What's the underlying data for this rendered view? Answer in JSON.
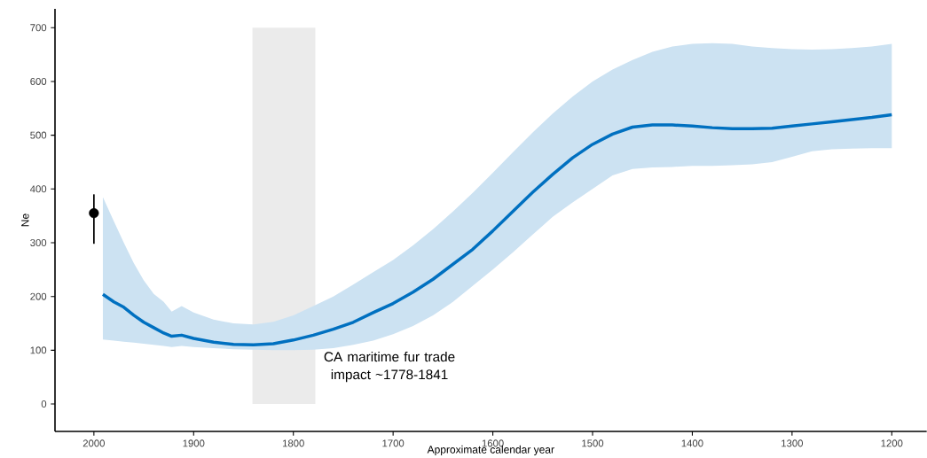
{
  "chart_data": {
    "type": "line",
    "xlabel": "Approximate calendar year",
    "ylabel": "Ne",
    "xlim": [
      2039,
      1165
    ],
    "xticks": [
      2000,
      1900,
      1800,
      1700,
      1600,
      1500,
      1400,
      1300,
      1200
    ],
    "ylim": [
      -51,
      735
    ],
    "yticks": [
      0,
      100,
      200,
      300,
      400,
      500,
      600,
      700
    ],
    "grid": false,
    "bands": [
      {
        "axis": "x",
        "from": 1841,
        "to": 1778,
        "color": "#ebebeb"
      }
    ],
    "annotations": [
      {
        "text": "CA maritime fur trade impact ~1778-1841",
        "x": 1778,
        "y": 100
      }
    ],
    "series": [
      {
        "color": "#0070c0",
        "x": [
          1991,
          1980,
          1970,
          1960,
          1950,
          1940,
          1930,
          1922,
          1912,
          1900,
          1880,
          1860,
          1840,
          1820,
          1800,
          1780,
          1760,
          1740,
          1720,
          1700,
          1680,
          1660,
          1640,
          1620,
          1600,
          1580,
          1560,
          1540,
          1520,
          1500,
          1480,
          1460,
          1440,
          1420,
          1400,
          1380,
          1360,
          1340,
          1320,
          1300,
          1280,
          1260,
          1240,
          1220,
          1200
        ],
        "values": [
          204,
          190,
          180,
          165,
          152,
          142,
          132,
          126,
          128,
          122,
          115,
          111,
          110,
          112,
          119,
          128,
          139,
          152,
          170,
          187,
          208,
          232,
          260,
          288,
          322,
          358,
          394,
          427,
          458,
          483,
          502,
          515,
          519,
          519,
          517,
          514,
          512,
          512,
          513,
          517,
          521,
          525,
          529,
          533,
          538
        ],
        "upper": [
          385,
          340,
          300,
          262,
          230,
          205,
          190,
          172,
          182,
          170,
          157,
          150,
          148,
          153,
          165,
          182,
          200,
          222,
          245,
          268,
          295,
          325,
          358,
          393,
          430,
          468,
          505,
          540,
          572,
          600,
          622,
          640,
          655,
          665,
          670,
          671,
          670,
          665,
          662,
          660,
          659,
          660,
          662,
          665,
          670
        ],
        "lower": [
          120,
          118,
          116,
          114,
          112,
          110,
          108,
          106,
          108,
          106,
          104,
          102,
          101,
          100,
          100,
          101,
          104,
          110,
          118,
          130,
          145,
          165,
          190,
          220,
          250,
          282,
          315,
          348,
          375,
          400,
          425,
          437,
          440,
          441,
          443,
          443,
          444,
          446,
          450,
          460,
          470,
          474,
          475,
          476,
          476
        ]
      },
      {
        "type": "scatter",
        "color": "#000000",
        "marker": "circle",
        "x": [
          2000
        ],
        "values": [
          355
        ],
        "errors": [
          [
            298,
            390
          ]
        ]
      }
    ]
  }
}
